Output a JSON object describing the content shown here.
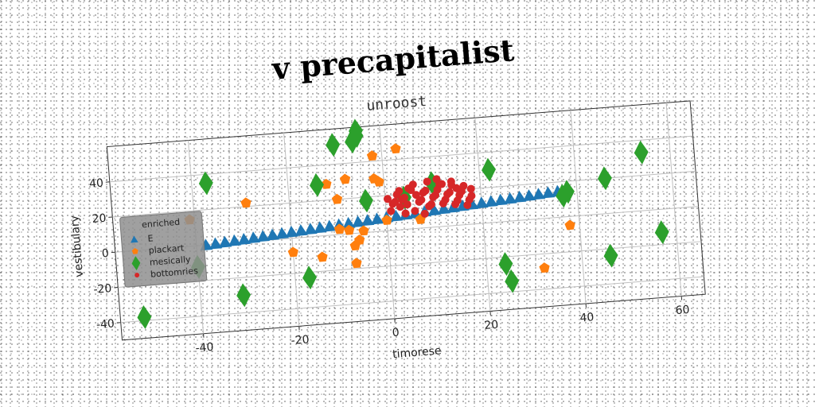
{
  "chart_data": {
    "type": "scatter",
    "title": "v precapitalist",
    "subtitle": "unroost",
    "xlabel": "timorese",
    "ylabel": "vestibulary",
    "xlim": [
      -57,
      65
    ],
    "ylim": [
      -50,
      60
    ],
    "xticks": [
      -40,
      -20,
      0,
      20,
      40,
      60
    ],
    "yticks": [
      -40,
      -20,
      0,
      20,
      40
    ],
    "grid": true,
    "legend": {
      "title": "enriched",
      "placement": "center-left"
    },
    "series": [
      {
        "name": "E",
        "marker": "triangle",
        "color": "#1f77b4",
        "x": [
          -38,
          -36,
          -34,
          -32,
          -30,
          -28,
          -26,
          -24,
          -22,
          -20,
          -18,
          -16,
          -14,
          -12,
          -10,
          -8,
          -6,
          -4,
          -2,
          0,
          2,
          4,
          6,
          8,
          10,
          12,
          14,
          16,
          18,
          20,
          22,
          24,
          26,
          28,
          30,
          32,
          34,
          36
        ],
        "y": [
          0,
          0.4,
          0.8,
          1.2,
          1.6,
          2,
          2.4,
          2.8,
          3.2,
          3.6,
          4,
          4.4,
          4.8,
          5.2,
          5.6,
          6,
          6.4,
          6.8,
          7.2,
          7.6,
          8,
          8.4,
          8.8,
          9.2,
          9.6,
          10,
          10.4,
          10.8,
          11.2,
          11.6,
          12,
          12.4,
          12.8,
          13.2,
          13.6,
          14,
          14.4,
          14.8
        ]
      },
      {
        "name": "plackart",
        "marker": "pentagon",
        "color": "#ff7f0e",
        "x": [
          -41,
          -29,
          -12,
          -10,
          -8,
          -2,
          3,
          -20,
          -14,
          -10,
          -8,
          -7,
          -6,
          -5,
          -2,
          -1,
          0,
          7,
          32,
          38,
          -7
        ],
        "y": [
          15,
          22,
          29,
          20,
          31,
          43,
          46,
          -8,
          -12,
          3,
          2,
          -7,
          -4,
          1,
          30,
          28,
          6,
          5,
          -28,
          -5,
          -17
        ]
      },
      {
        "name": "mesically",
        "marker": "diamond",
        "color": "#2ca02c",
        "x": [
          -52,
          -40,
          -37,
          -31,
          -17,
          -14,
          -10,
          -6,
          -5,
          -5,
          -4,
          4,
          10,
          22,
          24,
          25,
          37,
          38,
          46,
          46,
          54,
          57
        ],
        "y": [
          -38,
          -12,
          35,
          -30,
          -23,
          29,
          51,
          52,
          55,
          58,
          18,
          18,
          25,
          30,
          -24,
          -34,
          12,
          14,
          -24,
          20,
          33,
          -13
        ]
      },
      {
        "name": "bottomries",
        "marker": "circle",
        "color": "#d62728",
        "x": [
          0.5,
          1.5,
          2.5,
          3.5,
          4.5,
          5.5,
          6.5,
          7.5,
          8.5,
          9.5,
          10.5,
          11.5,
          12.5,
          13.5,
          14.5,
          15.5,
          16.5,
          17.5,
          1,
          2,
          3,
          4,
          5,
          6,
          7,
          8,
          9,
          10,
          11,
          12,
          13,
          14,
          15,
          16,
          17,
          18,
          3,
          6,
          9,
          12,
          15,
          18,
          4,
          8,
          11,
          14
        ],
        "y": [
          18,
          15,
          20,
          17,
          14,
          22,
          19,
          16,
          21,
          13,
          18,
          24,
          15,
          19,
          12,
          17,
          22,
          14,
          11,
          16,
          13,
          18,
          23,
          10,
          15,
          20,
          12,
          17,
          21,
          13,
          18,
          25,
          14,
          19,
          11,
          16,
          22,
          25,
          26,
          24,
          21,
          20,
          9,
          8,
          27,
          23
        ]
      }
    ]
  }
}
